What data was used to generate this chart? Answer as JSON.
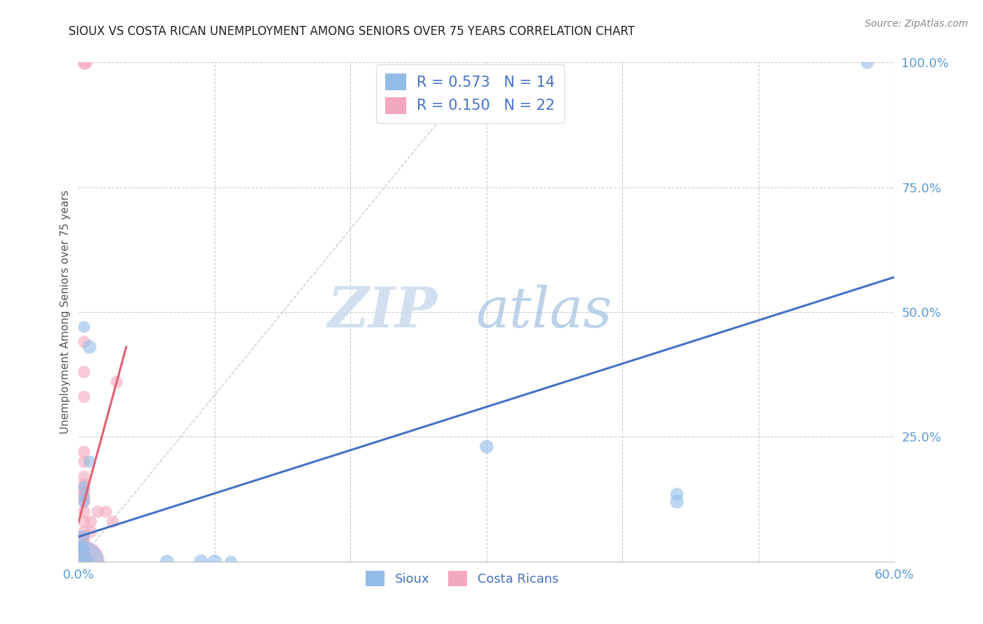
{
  "title": "SIOUX VS COSTA RICAN UNEMPLOYMENT AMONG SENIORS OVER 75 YEARS CORRELATION CHART",
  "source": "Source: ZipAtlas.com",
  "ylabel": "Unemployment Among Seniors over 75 years",
  "xlim": [
    0.0,
    0.6
  ],
  "ylim": [
    0.0,
    1.0
  ],
  "xticks": [
    0.0,
    0.1,
    0.2,
    0.3,
    0.4,
    0.5,
    0.6
  ],
  "ytick_labels_right": [
    "25.0%",
    "50.0%",
    "75.0%",
    "100.0%"
  ],
  "yticks_right": [
    0.25,
    0.5,
    0.75,
    1.0
  ],
  "background_color": "#ffffff",
  "grid_color": "#cccccc",
  "sioux_color": "#92bce8",
  "costarican_color": "#f4a8bc",
  "sioux_line_color": "#4472c4",
  "costarican_line_color": "#e06070",
  "ref_line_color": "#cccccc",
  "legend_sioux_R": "0.573",
  "legend_sioux_N": 14,
  "legend_cr_R": "0.150",
  "legend_cr_N": 22,
  "axis_label_color": "#5b9bd5",
  "sioux_points": [
    [
      0.004,
      0.47
    ],
    [
      0.008,
      0.43
    ],
    [
      0.008,
      0.2
    ],
    [
      0.004,
      0.15
    ],
    [
      0.004,
      0.13
    ],
    [
      0.004,
      0.12
    ],
    [
      0.003,
      0.05
    ],
    [
      0.003,
      0.03
    ],
    [
      0.003,
      0.02
    ],
    [
      0.003,
      0.0
    ],
    [
      0.003,
      0.0
    ],
    [
      0.007,
      0.0
    ],
    [
      0.065,
      0.0
    ],
    [
      0.09,
      0.0
    ],
    [
      0.1,
      0.0
    ],
    [
      0.112,
      0.0
    ],
    [
      0.3,
      0.23
    ],
    [
      0.44,
      0.135
    ],
    [
      0.44,
      0.12
    ],
    [
      0.58,
      1.0
    ]
  ],
  "sioux_sizes": [
    150,
    200,
    160,
    150,
    130,
    140,
    180,
    140,
    200,
    150,
    1800,
    140,
    200,
    220,
    220,
    150,
    200,
    180,
    200,
    180
  ],
  "cr_points": [
    [
      0.004,
      1.0
    ],
    [
      0.005,
      1.0
    ],
    [
      0.004,
      0.44
    ],
    [
      0.004,
      0.38
    ],
    [
      0.004,
      0.33
    ],
    [
      0.004,
      0.22
    ],
    [
      0.004,
      0.2
    ],
    [
      0.004,
      0.17
    ],
    [
      0.004,
      0.155
    ],
    [
      0.004,
      0.145
    ],
    [
      0.004,
      0.14
    ],
    [
      0.004,
      0.13
    ],
    [
      0.004,
      0.12
    ],
    [
      0.004,
      0.1
    ],
    [
      0.004,
      0.08
    ],
    [
      0.004,
      0.06
    ],
    [
      0.004,
      0.05
    ],
    [
      0.004,
      0.04
    ],
    [
      0.004,
      0.02
    ],
    [
      0.004,
      0.0
    ],
    [
      0.004,
      0.0
    ],
    [
      0.009,
      0.08
    ],
    [
      0.009,
      0.06
    ],
    [
      0.014,
      0.1
    ],
    [
      0.02,
      0.1
    ],
    [
      0.025,
      0.08
    ],
    [
      0.028,
      0.36
    ]
  ],
  "cr_sizes": [
    220,
    220,
    160,
    160,
    160,
    160,
    160,
    160,
    160,
    160,
    160,
    160,
    160,
    160,
    160,
    160,
    160,
    160,
    160,
    1800,
    160,
    160,
    160,
    160,
    160,
    160,
    160
  ],
  "sioux_line": [
    [
      0.0,
      0.05
    ],
    [
      0.6,
      0.57
    ]
  ],
  "cr_line": [
    [
      0.0,
      0.08
    ],
    [
      0.035,
      0.43
    ]
  ],
  "ref_line": [
    [
      0.0,
      0.0
    ],
    [
      0.3,
      1.0
    ]
  ]
}
